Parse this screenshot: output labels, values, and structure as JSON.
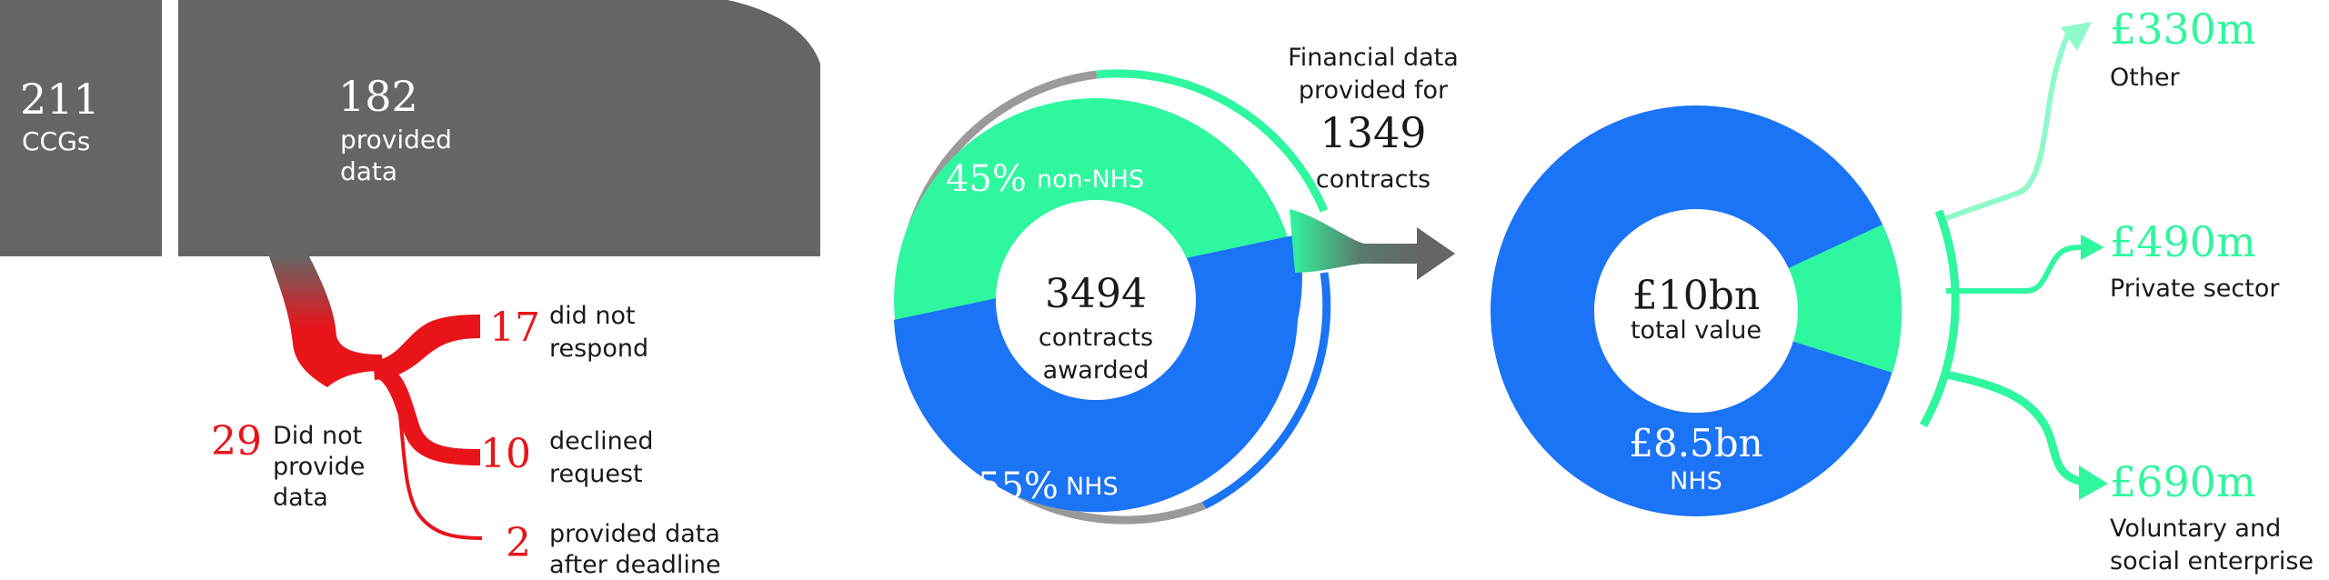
{
  "ccgs": {
    "number": "211",
    "label": "CCGs"
  },
  "provided": {
    "number": "182",
    "label_line1": "provided",
    "label_line2": "data"
  },
  "not_provided": {
    "number": "29",
    "label_line1": "Did not",
    "label_line2": "provide",
    "label_line3": "data"
  },
  "breakdown": [
    {
      "number": "17",
      "line1": "did not",
      "line2": "respond"
    },
    {
      "number": "10",
      "line1": "declined",
      "line2": "request"
    },
    {
      "number": "2",
      "line1": "provided data",
      "line2": "after deadline"
    }
  ],
  "contracts_ring": {
    "total": "3494",
    "line1": "contracts",
    "line2": "awarded",
    "non_nhs_pct": "45%",
    "non_nhs_label": "non-NHS",
    "nhs_pct": "55%",
    "nhs_label": "NHS"
  },
  "financial": {
    "line1": "Financial data",
    "line2": "provided for",
    "number": "1349",
    "line3": "contracts"
  },
  "value_ring": {
    "total": "£10bn",
    "total_label": "total value",
    "nhs_value": "£8.5bn",
    "nhs_label": "NHS"
  },
  "segments": [
    {
      "value": "£330m",
      "line1": "Other",
      "line2": ""
    },
    {
      "value": "£490m",
      "line1": "Private sector",
      "line2": ""
    },
    {
      "value": "£690m",
      "line1": "Voluntary and",
      "line2": "social enterprise"
    }
  ],
  "colors": {
    "gray": "#656565",
    "light_gray": "#9a9a9a",
    "red": "#e8141a",
    "green": "#2ff79f",
    "blue": "#1b73f5",
    "white": "#ffffff"
  }
}
